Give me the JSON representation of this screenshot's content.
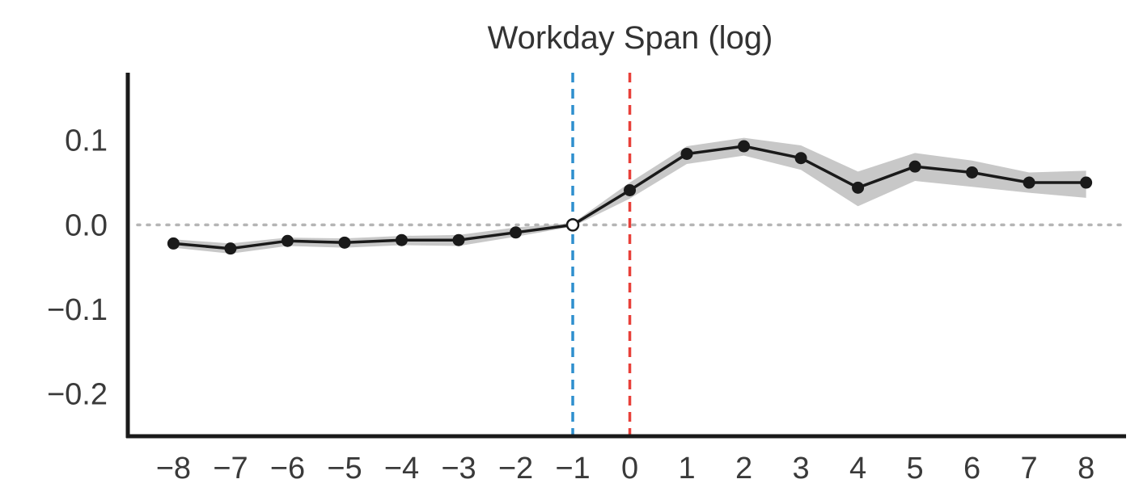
{
  "chart_data": {
    "type": "line",
    "title": "Workday Span (log)",
    "xlabel": "",
    "ylabel": "",
    "x": [
      -8,
      -7,
      -6,
      -5,
      -4,
      -3,
      -2,
      -1,
      0,
      1,
      2,
      3,
      4,
      5,
      6,
      7,
      8
    ],
    "series": [
      {
        "values": [
          -0.022,
          -0.028,
          -0.019,
          -0.021,
          -0.018,
          -0.018,
          -0.009,
          0.0,
          0.041,
          0.084,
          0.093,
          0.079,
          0.044,
          0.069,
          0.062,
          0.05,
          0.05
        ],
        "ci_lower": [
          -0.027,
          -0.034,
          -0.025,
          -0.027,
          -0.024,
          -0.025,
          -0.014,
          -0.002,
          0.031,
          0.072,
          0.082,
          0.065,
          0.022,
          0.052,
          0.045,
          0.038,
          0.032
        ],
        "ci_upper": [
          -0.017,
          -0.022,
          -0.015,
          -0.016,
          -0.013,
          -0.012,
          -0.003,
          0.002,
          0.05,
          0.093,
          0.103,
          0.094,
          0.063,
          0.085,
          0.076,
          0.062,
          0.064
        ],
        "color": "#1a1a1a",
        "band_color": "#c8c8c8"
      }
    ],
    "xlim": [
      -8.8,
      8.7
    ],
    "ylim": [
      -0.25,
      0.18
    ],
    "xticks": [
      -8,
      -7,
      -6,
      -5,
      -4,
      -3,
      -2,
      -1,
      0,
      1,
      2,
      3,
      4,
      5,
      6,
      7,
      8
    ],
    "xtick_labels": [
      "−8",
      "−7",
      "−6",
      "−5",
      "−4",
      "−3",
      "−2",
      "−1",
      "0",
      "1",
      "2",
      "3",
      "4",
      "5",
      "6",
      "7",
      "8"
    ],
    "yticks": [
      -0.2,
      -0.1,
      0.0,
      0.1
    ],
    "ytick_labels": [
      "−0.2",
      "−0.1",
      "0.0",
      "0.1"
    ],
    "reference_lines": [
      {
        "axis": "x",
        "value": -1,
        "color": "#2e8fce",
        "style": "dashed"
      },
      {
        "axis": "x",
        "value": 0,
        "color": "#e8403a",
        "style": "dashed"
      },
      {
        "axis": "y",
        "value": 0,
        "color": "#b5b5b5",
        "style": "dotted"
      }
    ],
    "grid": false,
    "legend": "none"
  }
}
